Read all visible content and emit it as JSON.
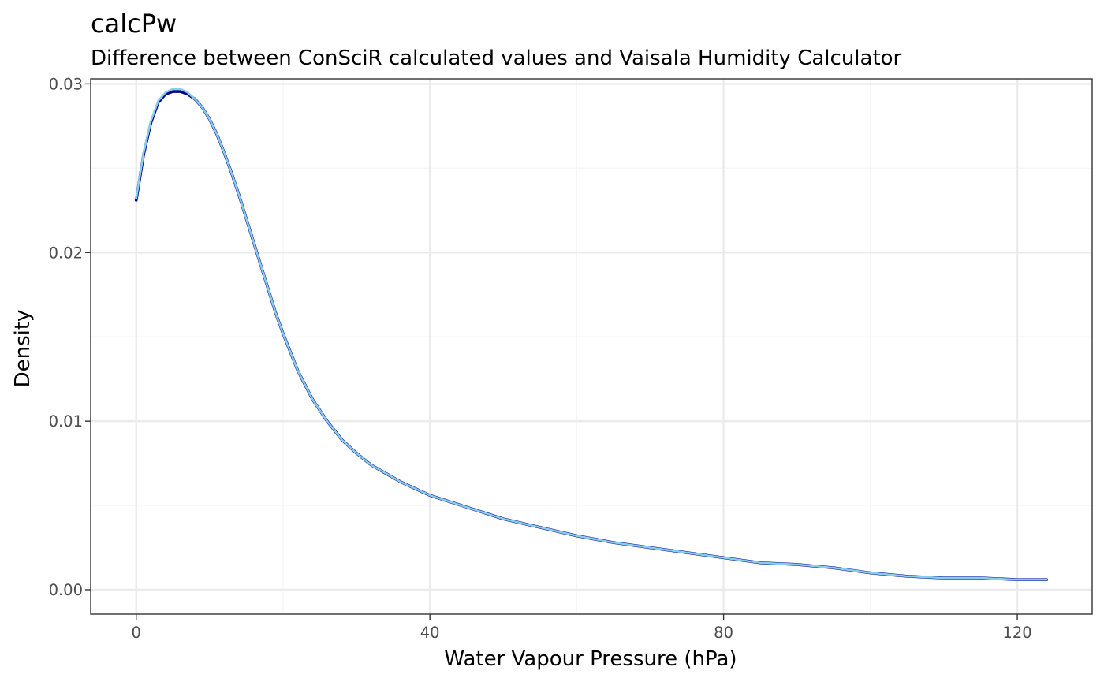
{
  "chart_data": {
    "type": "line",
    "title": "calcPw",
    "subtitle": "Difference between ConSciR calculated values and Vaisala Humidity Calculator",
    "xlabel": "Water Vapour Pressure (hPa)",
    "ylabel": "Density",
    "xlim": [
      -6.2,
      130.2
    ],
    "ylim": [
      -0.00145,
      0.0303
    ],
    "x_ticks": [
      0,
      40,
      80,
      120
    ],
    "x_tick_labels": [
      "0",
      "40",
      "80",
      "120"
    ],
    "x_minor_ticks": [
      20,
      60,
      100
    ],
    "y_ticks": [
      0.0,
      0.01,
      0.02,
      0.03
    ],
    "y_tick_labels": [
      "0.00",
      "0.01",
      "0.02",
      "0.03"
    ],
    "y_minor_ticks": [
      0.005,
      0.015,
      0.025
    ],
    "grid": true,
    "legend": "none",
    "series": [
      {
        "color": "#00008b",
        "x": [
          0,
          1,
          2,
          3,
          4,
          5,
          6,
          7,
          8,
          9,
          10,
          11,
          12,
          13,
          14,
          15,
          16,
          17,
          18,
          19,
          20,
          22,
          24,
          26,
          28,
          30,
          32,
          34,
          36,
          38,
          40,
          45,
          50,
          55,
          60,
          65,
          70,
          75,
          80,
          85,
          90,
          95,
          100,
          105,
          110,
          115,
          120,
          124
        ],
        "values": [
          0.0231,
          0.0258,
          0.0277,
          0.0289,
          0.0294,
          0.02955,
          0.02955,
          0.0294,
          0.0291,
          0.0286,
          0.0279,
          0.027,
          0.0259,
          0.0247,
          0.0234,
          0.022,
          0.0206,
          0.0192,
          0.0178,
          0.0164,
          0.0152,
          0.013,
          0.0113,
          0.01,
          0.0089,
          0.0081,
          0.0074,
          0.0069,
          0.0064,
          0.006,
          0.0056,
          0.0049,
          0.0042,
          0.0037,
          0.0032,
          0.0028,
          0.0025,
          0.0022,
          0.0019,
          0.0016,
          0.0015,
          0.0013,
          0.001,
          0.0008,
          0.0007,
          0.0007,
          0.0006,
          0.0006
        ]
      },
      {
        "color": "#87ceeb",
        "x": [
          0,
          1,
          2,
          3,
          4,
          5,
          6,
          7,
          8,
          9,
          10,
          11,
          12,
          13,
          14,
          15,
          16,
          17,
          18,
          19,
          20,
          22,
          24,
          26,
          28,
          30,
          32,
          34,
          36,
          38,
          40,
          45,
          50,
          55,
          60,
          65,
          70,
          75,
          80,
          85,
          90,
          95,
          100,
          105,
          110,
          115,
          120,
          124
        ],
        "values": [
          0.0232,
          0.0259,
          0.0278,
          0.029,
          0.0295,
          0.0297,
          0.0297,
          0.0295,
          0.0291,
          0.0286,
          0.0279,
          0.027,
          0.0259,
          0.0247,
          0.0234,
          0.022,
          0.0206,
          0.0192,
          0.0178,
          0.0164,
          0.0152,
          0.013,
          0.0113,
          0.01,
          0.0089,
          0.0081,
          0.0074,
          0.0069,
          0.0064,
          0.006,
          0.0056,
          0.0049,
          0.0042,
          0.0037,
          0.0032,
          0.0028,
          0.0025,
          0.0022,
          0.0019,
          0.0016,
          0.0015,
          0.0013,
          0.001,
          0.0008,
          0.0007,
          0.0007,
          0.0006,
          0.0006
        ]
      }
    ]
  },
  "colors": {
    "background": "#ffffff",
    "grid_major": "#ebebeb",
    "grid_minor": "#f5f5f5",
    "panel_border": "#333333",
    "tick_label": "#4d4d4d"
  }
}
